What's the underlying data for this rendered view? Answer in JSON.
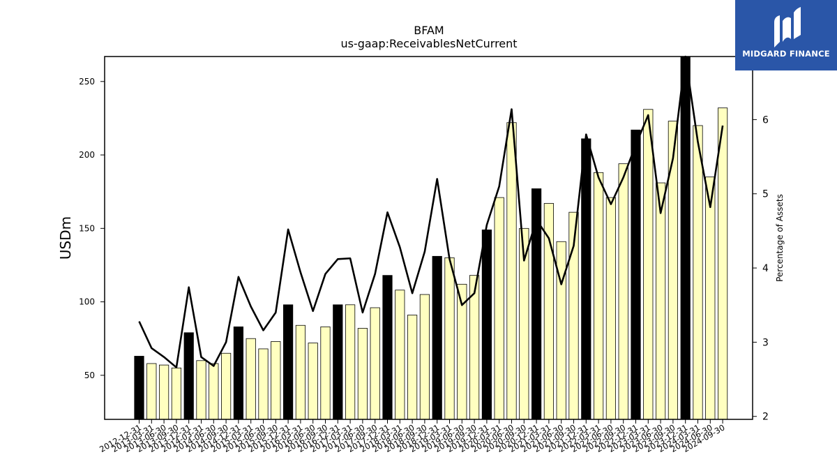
{
  "chart_data": {
    "type": "bar",
    "title": "BFAM",
    "subtitle": "us-gaap:ReceivablesNetCurrent",
    "ylabel": "USDm",
    "y2label": "Percentage of Assets",
    "ylim": [
      20,
      267
    ],
    "y2lim": [
      1.96,
      6.85
    ],
    "yticks": [
      50,
      100,
      150,
      200,
      250
    ],
    "y2ticks": [
      2,
      3,
      4,
      5,
      6
    ],
    "colors": {
      "annual_bar": "#000000",
      "quarter_bar": "#ffffc0",
      "line": "#000000"
    },
    "categories": [
      "2012-12-31",
      "2013-03-31",
      "2013-06-30",
      "2013-09-30",
      "2013-12-31",
      "2014-03-31",
      "2014-06-30",
      "2014-09-30",
      "2014-12-31",
      "2015-03-31",
      "2015-06-30",
      "2015-09-30",
      "2015-12-31",
      "2016-03-31",
      "2016-06-30",
      "2016-09-30",
      "2016-12-31",
      "2017-03-31",
      "2017-06-30",
      "2017-09-30",
      "2017-12-31",
      "2018-03-31",
      "2018-06-30",
      "2018-09-30",
      "2018-12-31",
      "2019-03-31",
      "2019-06-30",
      "2019-09-30",
      "2019-12-31",
      "2020-03-31",
      "2020-06-30",
      "2020-09-30",
      "2020-12-31",
      "2021-03-31",
      "2021-06-30",
      "2021-09-30",
      "2021-12-31",
      "2022-03-31",
      "2022-06-30",
      "2022-09-30",
      "2022-12-31",
      "2023-03-31",
      "2023-06-30",
      "2023-09-30",
      "2023-12-31",
      "2024-03-31",
      "2024-06-30",
      "2024-09-30"
    ],
    "series": [
      {
        "name": "",
        "kind": "bar",
        "values": [
          63,
          58,
          57,
          55,
          79,
          60,
          58,
          65,
          83,
          75,
          68,
          73,
          98,
          84,
          72,
          83,
          98,
          98,
          82,
          96,
          118,
          108,
          91,
          105,
          131,
          130,
          112,
          118,
          149,
          171,
          222,
          150,
          177,
          167,
          141,
          161,
          211,
          188,
          171,
          194,
          217,
          231,
          181,
          223,
          267,
          220,
          185,
          232
        ]
      },
      {
        "name": "",
        "kind": "line",
        "axis": "right",
        "values": [
          3.28,
          2.92,
          2.8,
          2.66,
          3.74,
          2.8,
          2.68,
          3.0,
          3.88,
          3.48,
          3.16,
          3.4,
          4.52,
          3.94,
          3.42,
          3.92,
          4.12,
          4.13,
          3.4,
          3.92,
          4.75,
          4.28,
          3.66,
          4.22,
          5.2,
          4.12,
          3.5,
          3.66,
          4.58,
          5.1,
          6.14,
          4.1,
          4.65,
          4.4,
          3.78,
          4.3,
          5.8,
          5.22,
          4.86,
          5.22,
          5.66,
          6.06,
          4.74,
          5.48,
          6.85,
          5.7,
          4.82,
          5.92
        ]
      }
    ]
  },
  "logo": {
    "text": "MIDGARD FINANCE"
  }
}
